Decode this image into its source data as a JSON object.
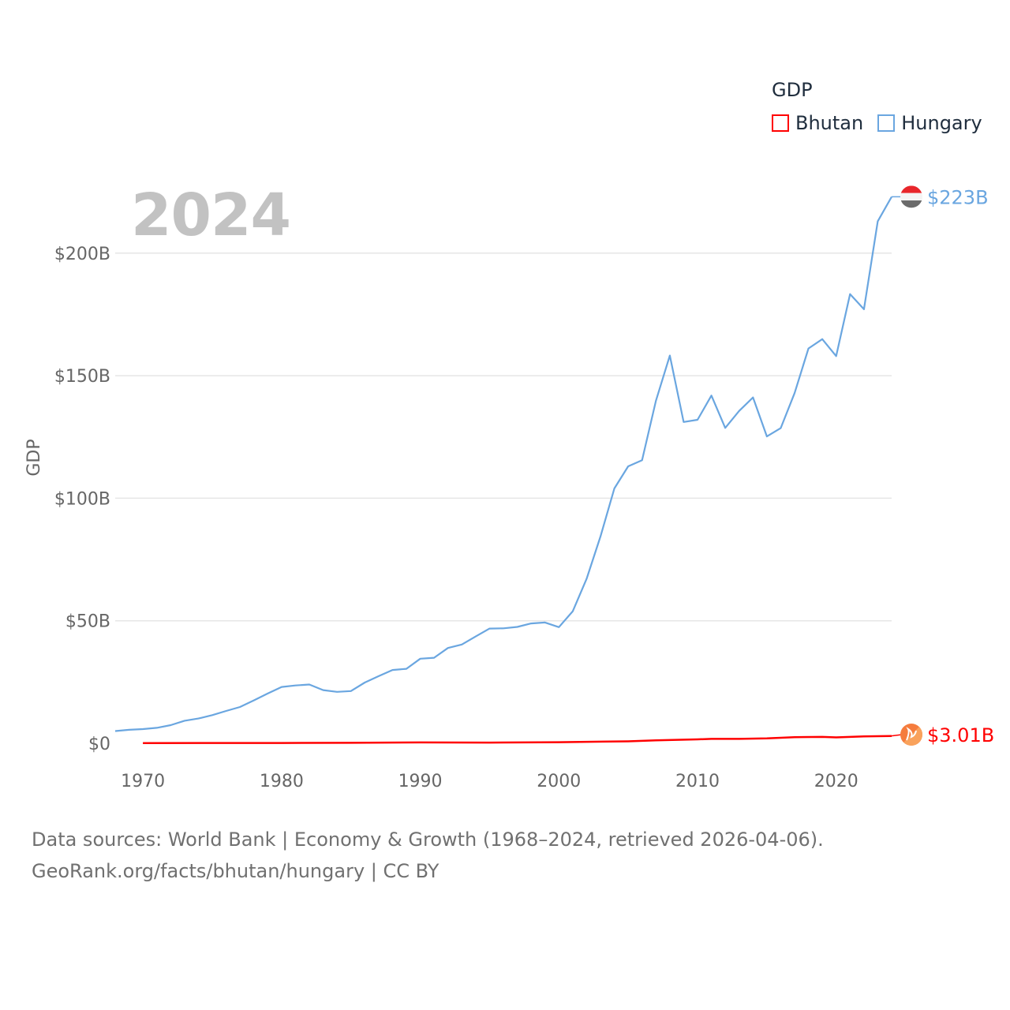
{
  "legend": {
    "title": "GDP",
    "items": [
      {
        "label": "Bhutan",
        "color": "#ff0000"
      },
      {
        "label": "Hungary",
        "color": "#6aa6e0"
      }
    ]
  },
  "year_overlay": "2024",
  "footer": {
    "line1": "Data sources: World Bank | Economy & Growth (1968–2024, retrieved 2026-04-06).",
    "line2": "GeoRank.org/facts/bhutan/hungary | CC BY"
  },
  "chart_data": {
    "type": "line",
    "title": "GDP",
    "xlabel": "",
    "ylabel": "GDP",
    "xlim": [
      1968,
      2024
    ],
    "ylim": [
      0,
      225
    ],
    "x_ticks": [
      1970,
      1980,
      1990,
      2000,
      2010,
      2020
    ],
    "y_ticks": [
      0,
      50,
      100,
      150,
      200
    ],
    "y_tick_labels": [
      "$0",
      "$50B",
      "$100B",
      "$150B",
      "$200B"
    ],
    "grid": true,
    "series": [
      {
        "name": "Hungary",
        "color": "#6aa6e0",
        "end_label": "$223B",
        "x": [
          1968,
          1969,
          1970,
          1971,
          1972,
          1973,
          1974,
          1975,
          1976,
          1977,
          1978,
          1979,
          1980,
          1981,
          1982,
          1983,
          1984,
          1985,
          1986,
          1987,
          1988,
          1989,
          1990,
          1991,
          1992,
          1993,
          1994,
          1995,
          1996,
          1997,
          1998,
          1999,
          2000,
          2001,
          2002,
          2003,
          2004,
          2005,
          2006,
          2007,
          2008,
          2009,
          2010,
          2011,
          2012,
          2013,
          2014,
          2015,
          2016,
          2017,
          2018,
          2019,
          2020,
          2021,
          2022,
          2023,
          2024
        ],
        "values": [
          5.0,
          5.5,
          5.8,
          6.3,
          7.4,
          9.2,
          10.1,
          11.5,
          13.2,
          14.8,
          17.5,
          20.3,
          23.0,
          23.6,
          24.0,
          21.7,
          21.0,
          21.3,
          24.8,
          27.4,
          29.9,
          30.4,
          34.5,
          34.9,
          38.9,
          40.3,
          43.6,
          46.8,
          46.9,
          47.5,
          48.9,
          49.3,
          47.4,
          53.9,
          67.1,
          84.4,
          104.0,
          113.0,
          115.5,
          139.8,
          158.2,
          131.1,
          132.0,
          141.9,
          128.7,
          135.6,
          141.1,
          125.2,
          128.6,
          142.9,
          161.1,
          164.9,
          158.0,
          183.3,
          177.1,
          213.0,
          223.0
        ]
      },
      {
        "name": "Bhutan",
        "color": "#ff0000",
        "end_label": "$3.01B",
        "x": [
          1970,
          1975,
          1980,
          1985,
          1990,
          1995,
          2000,
          2005,
          2007,
          2010,
          2011,
          2013,
          2015,
          2017,
          2019,
          2020,
          2021,
          2022,
          2023,
          2024
        ],
        "values": [
          0.1,
          0.12,
          0.14,
          0.2,
          0.35,
          0.3,
          0.44,
          0.8,
          1.2,
          1.6,
          1.8,
          1.8,
          2.0,
          2.5,
          2.6,
          2.4,
          2.6,
          2.8,
          2.9,
          3.01
        ]
      }
    ]
  }
}
